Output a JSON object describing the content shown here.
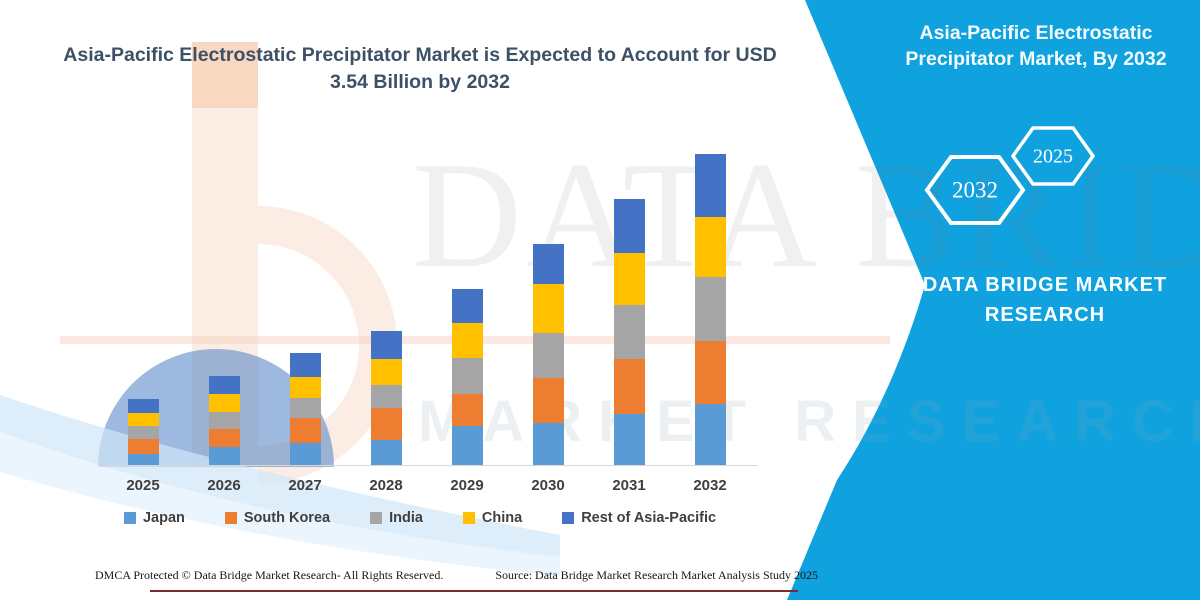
{
  "title": "Asia-Pacific Electrostatic Precipitator Market is Expected to Account for USD 3.54 Billion by 2032",
  "sidebar": {
    "heading": "Asia-Pacific Electrostatic Precipitator Market, By 2032",
    "hexagon_front_year": "2025",
    "hexagon_back_year": "2032",
    "brand_line1": "DATA BRIDGE MARKET",
    "brand_line2": "RESEARCH",
    "panel_color": "#0fa2df",
    "text_color": "#ffffff"
  },
  "watermark": {
    "line1": "DATA BRIDGE",
    "line2": "MARKET RESEARCH"
  },
  "footer": {
    "left": "DMCA Protected © Data Bridge Market Research-  All Rights Reserved.",
    "right": "Source: Data Bridge Market Research  Market Analysis Study 2025"
  },
  "chart_data": {
    "type": "bar",
    "stacked": true,
    "title": "Asia-Pacific Electrostatic Precipitator Market is Expected to Account for USD 3.54 Billion by 2032",
    "unit": "USD Billion",
    "highlight_value": "USD 3.54 Billion by 2032",
    "categories": [
      "2025",
      "2026",
      "2027",
      "2028",
      "2029",
      "2030",
      "2031",
      "2032"
    ],
    "series": [
      {
        "name": "Japan",
        "color": "#5b9bd5",
        "values": [
          0.13,
          0.21,
          0.25,
          0.28,
          0.44,
          0.48,
          0.58,
          0.69
        ]
      },
      {
        "name": "South Korea",
        "color": "#ed7d31",
        "values": [
          0.17,
          0.21,
          0.28,
          0.36,
          0.36,
          0.51,
          0.62,
          0.72
        ]
      },
      {
        "name": "India",
        "color": "#a5a5a5",
        "values": [
          0.15,
          0.19,
          0.23,
          0.26,
          0.41,
          0.51,
          0.61,
          0.73
        ]
      },
      {
        "name": "China",
        "color": "#ffc000",
        "values": [
          0.15,
          0.2,
          0.24,
          0.3,
          0.4,
          0.56,
          0.59,
          0.68
        ]
      },
      {
        "name": "Rest of Asia-Pacific",
        "color": "#4472c4",
        "values": [
          0.16,
          0.2,
          0.27,
          0.32,
          0.39,
          0.45,
          0.61,
          0.72
        ]
      }
    ],
    "totals": [
      0.76,
      1.01,
      1.27,
      1.52,
      2.0,
      2.51,
      3.01,
      3.54
    ],
    "x_axis_visible": true,
    "y_axis_visible": false,
    "gridlines": false,
    "legend_position": "bottom"
  }
}
